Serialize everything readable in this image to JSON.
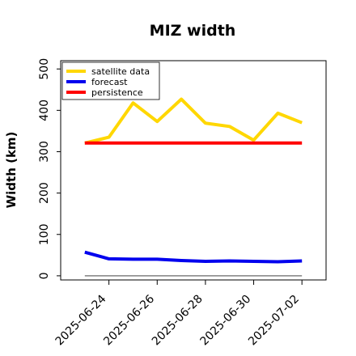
{
  "chart_data": {
    "type": "line",
    "title": "MIZ width",
    "xlabel": "",
    "ylabel": "Width (km)",
    "x": [
      "2025-06-23",
      "2025-06-24",
      "2025-06-25",
      "2025-06-26",
      "2025-06-27",
      "2025-06-28",
      "2025-06-29",
      "2025-06-30",
      "2025-07-01",
      "2025-07-02"
    ],
    "xlim": [
      "2025-06-22",
      "2025-07-03"
    ],
    "xticks": [
      "2025-06-24",
      "2025-06-26",
      "2025-06-28",
      "2025-06-30",
      "2025-07-02"
    ],
    "ylim": [
      -10,
      520
    ],
    "yticks": [
      0,
      100,
      200,
      300,
      400,
      500
    ],
    "grid": false,
    "legend_position": "top-left",
    "series": [
      {
        "name": "satellite data",
        "color": "#FFD700",
        "values": [
          321,
          335,
          418,
          373,
          427,
          369,
          361,
          328,
          393,
          370
        ]
      },
      {
        "name": "forecast",
        "color": "#0000EE",
        "values": [
          57,
          41,
          40,
          40,
          37,
          35,
          36,
          35,
          34,
          36
        ]
      },
      {
        "name": "persistence",
        "color": "#FF0000",
        "values": [
          321,
          321,
          321,
          321,
          321,
          321,
          321,
          321,
          321,
          321
        ]
      }
    ],
    "reference_line": {
      "y": 0,
      "color": "#808080"
    },
    "xtick_colors": {
      "2025-06-24": "#228B22"
    }
  }
}
